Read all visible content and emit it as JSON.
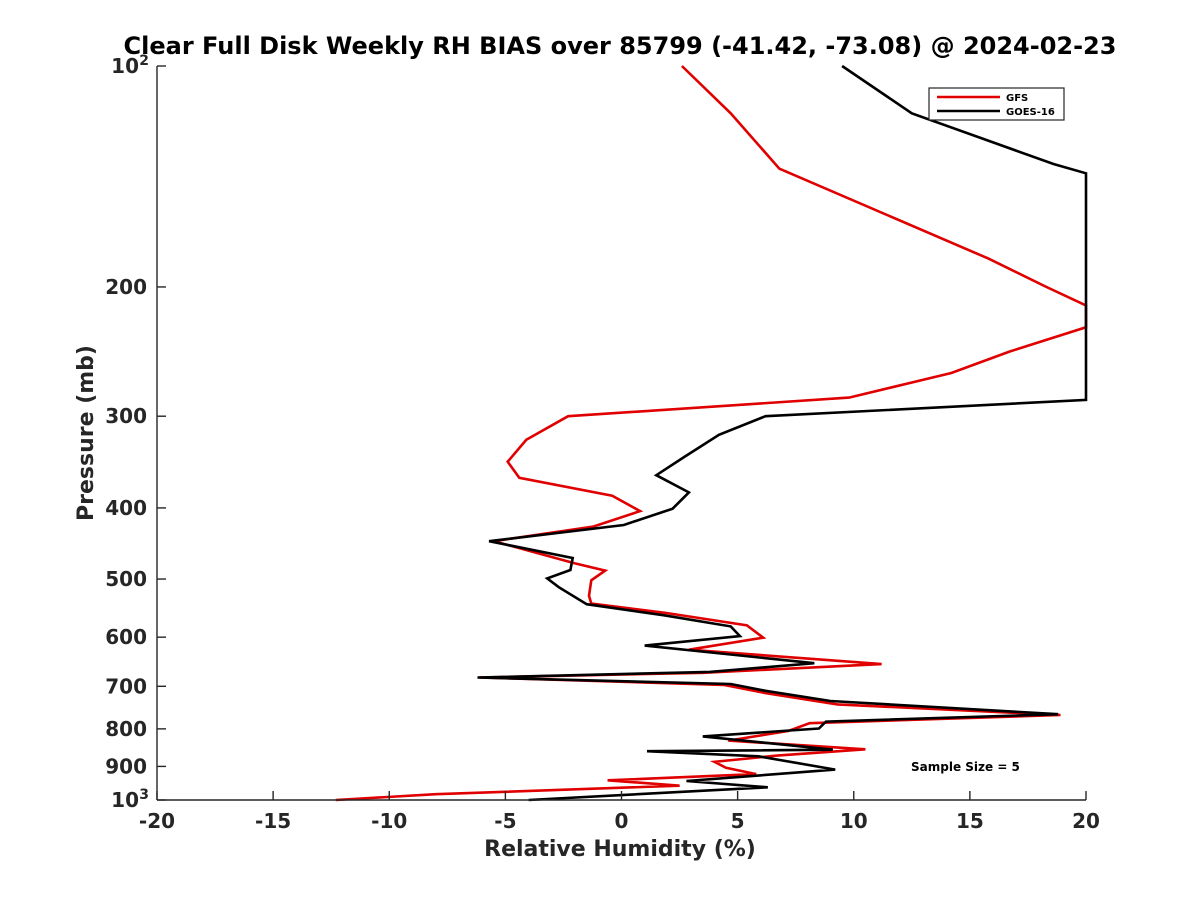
{
  "chart_data": {
    "type": "line",
    "title": "Clear Full Disk Weekly RH BIAS over 85799 (-41.42, -73.08) @ 2024-02-23",
    "xlabel": "Relative Humidity (%)",
    "ylabel": "Pressure (mb)",
    "xlim": [
      -20,
      20
    ],
    "ylim": [
      100,
      1000
    ],
    "y_scale": "log",
    "y_reversed": true,
    "grid": false,
    "legend_position": "top-right",
    "x_ticks": [
      -20,
      -15,
      -10,
      -5,
      0,
      5,
      10,
      15,
      20
    ],
    "x_tick_labels": [
      "-20",
      "-15",
      "-10",
      "-5",
      "0",
      "5",
      "10",
      "15",
      "20"
    ],
    "y_ticks": [
      100,
      200,
      300,
      400,
      500,
      600,
      700,
      800,
      900,
      1000
    ],
    "y_tick_labels": [
      {
        "base": "10",
        "exp": "2"
      },
      {
        "base": "200",
        "exp": ""
      },
      {
        "base": "300",
        "exp": ""
      },
      {
        "base": "400",
        "exp": ""
      },
      {
        "base": "500",
        "exp": ""
      },
      {
        "base": "600",
        "exp": ""
      },
      {
        "base": "700",
        "exp": ""
      },
      {
        "base": "800",
        "exp": ""
      },
      {
        "base": "900",
        "exp": ""
      },
      {
        "base": "10",
        "exp": "3"
      }
    ],
    "annotation": "Sample Size = 5",
    "series": [
      {
        "name": "GFS",
        "color": "#e00000",
        "points": [
          [
            2.6,
            100
          ],
          [
            4.7,
            116
          ],
          [
            6.8,
            138
          ],
          [
            15.8,
            183
          ],
          [
            18.3,
            200
          ],
          [
            20.0,
            212
          ],
          [
            20.0,
            227
          ],
          [
            16.7,
            245
          ],
          [
            14.2,
            262
          ],
          [
            9.8,
            283
          ],
          [
            -2.3,
            300
          ],
          [
            -4.1,
            323
          ],
          [
            -4.9,
            346
          ],
          [
            -4.4,
            364
          ],
          [
            -0.4,
            385
          ],
          [
            0.8,
            404
          ],
          [
            -1.2,
            424
          ],
          [
            -5.5,
            444
          ],
          [
            -2.0,
            476
          ],
          [
            -0.7,
            487
          ],
          [
            -1.3,
            502
          ],
          [
            -1.4,
            527
          ],
          [
            -1.3,
            540
          ],
          [
            1.9,
            556
          ],
          [
            5.4,
            578
          ],
          [
            6.1,
            601
          ],
          [
            2.9,
            624
          ],
          [
            11.2,
            653
          ],
          [
            3.5,
            671
          ],
          [
            -6.1,
            681
          ],
          [
            4.4,
            697
          ],
          [
            6.2,
            715
          ],
          [
            9.3,
            741
          ],
          [
            18.9,
            766
          ],
          [
            8.1,
            786
          ],
          [
            7.2,
            805
          ],
          [
            4.6,
            830
          ],
          [
            10.5,
            853
          ],
          [
            6.7,
            870
          ],
          [
            4.0,
            887
          ],
          [
            4.5,
            904
          ],
          [
            5.8,
            922
          ],
          [
            -0.6,
            940
          ],
          [
            2.5,
            956
          ],
          [
            -8.0,
            982
          ],
          [
            -12.3,
            1000
          ]
        ]
      },
      {
        "name": "GOES-16",
        "color": "#000000",
        "points": [
          [
            9.5,
            100
          ],
          [
            12.5,
            116
          ],
          [
            18.6,
            136
          ],
          [
            20.0,
            140
          ],
          [
            20.0,
            285
          ],
          [
            6.2,
            300
          ],
          [
            4.2,
            318
          ],
          [
            2.7,
            341
          ],
          [
            1.5,
            361
          ],
          [
            2.9,
            381
          ],
          [
            2.2,
            401
          ],
          [
            0.1,
            422
          ],
          [
            -5.7,
            444
          ],
          [
            -2.1,
            468
          ],
          [
            -2.2,
            486
          ],
          [
            -3.2,
            499
          ],
          [
            -2.7,
            513
          ],
          [
            -1.5,
            541
          ],
          [
            1.8,
            560
          ],
          [
            4.7,
            580
          ],
          [
            5.1,
            598
          ],
          [
            1.0,
            616
          ],
          [
            8.3,
            651
          ],
          [
            3.8,
            669
          ],
          [
            -6.2,
            681
          ],
          [
            4.7,
            695
          ],
          [
            6.2,
            710
          ],
          [
            9.0,
            733
          ],
          [
            18.8,
            764
          ],
          [
            8.8,
            782
          ],
          [
            8.5,
            799
          ],
          [
            3.5,
            819
          ],
          [
            9.1,
            854
          ],
          [
            1.1,
            858
          ],
          [
            5.9,
            872
          ],
          [
            9.2,
            909
          ],
          [
            2.8,
            942
          ],
          [
            6.3,
            961
          ],
          [
            -4.0,
            1000
          ]
        ]
      }
    ]
  }
}
